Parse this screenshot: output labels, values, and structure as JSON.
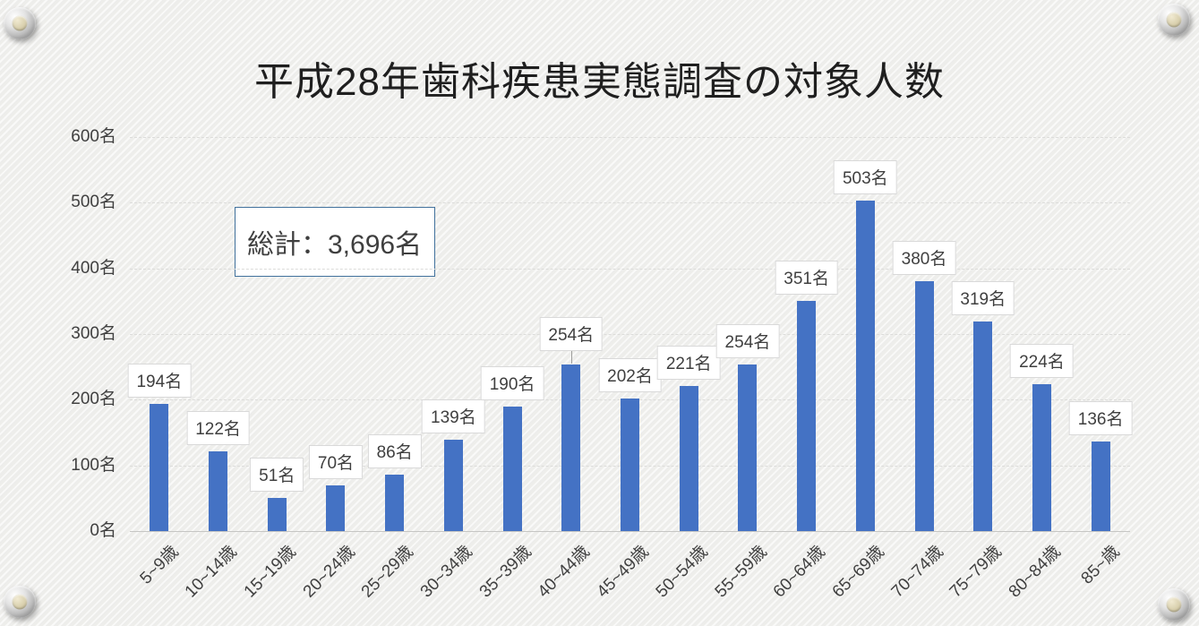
{
  "slide": {
    "title": "平成28年歯科疾患実態調査の対象人数",
    "total_annotation": "総計：3,696名"
  },
  "chart_data": {
    "type": "bar",
    "title": "平成28年歯科疾患実態調査の対象人数",
    "categories": [
      "5~9歳",
      "10~14歳",
      "15~19歳",
      "20~24歳",
      "25~29歳",
      "30~34歳",
      "35~39歳",
      "40~44歳",
      "45~49歳",
      "50~54歳",
      "55~59歳",
      "60~64歳",
      "65~69歳",
      "70~74歳",
      "75~79歳",
      "80~84歳",
      "85~歳"
    ],
    "values": [
      194,
      122,
      51,
      70,
      86,
      139,
      190,
      254,
      202,
      221,
      254,
      351,
      503,
      380,
      319,
      224,
      136
    ],
    "data_labels": [
      "194名",
      "122名",
      "51名",
      "70名",
      "86名",
      "139名",
      "190名",
      "254名",
      "202名",
      "221名",
      "254名",
      "351名",
      "503名",
      "380名",
      "319名",
      "224名",
      "136名"
    ],
    "unit": "名",
    "yticks": [
      "0名",
      "100名",
      "200名",
      "300名",
      "400名",
      "500名",
      "600名"
    ],
    "ylim": [
      0,
      600
    ],
    "ytick_interval": 100,
    "grid": "horizontal-dashed",
    "legend": "none",
    "annotation": "総計：3,696名",
    "xlabel": "",
    "ylabel": ""
  },
  "colors": {
    "bar": "#4472C4",
    "annotation_border": "#41719C",
    "label_box_border": "#D9D9D9",
    "gridline": "#DCDCDA",
    "axis_line": "#C6C6C4",
    "text": "#404040",
    "title_text": "#1F1F1F"
  }
}
